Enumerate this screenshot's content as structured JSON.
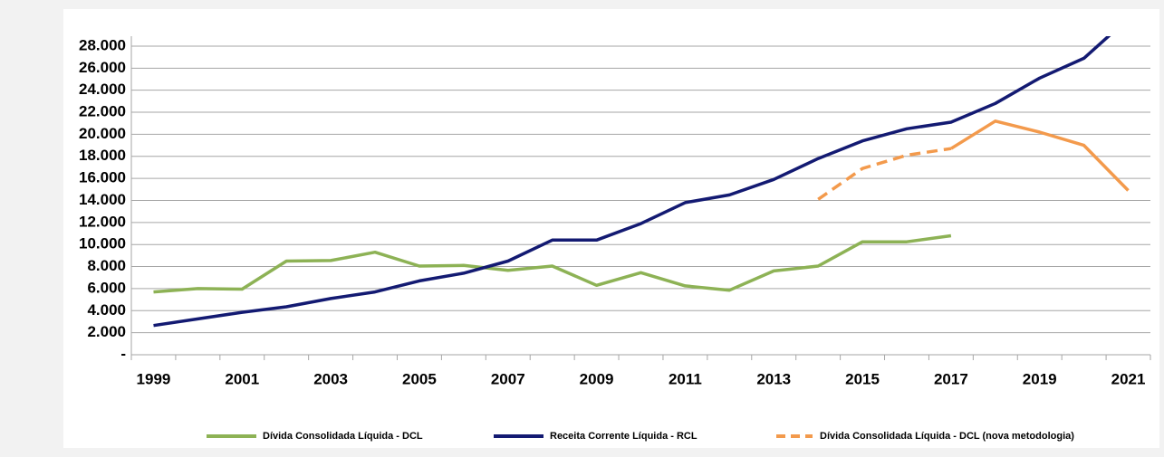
{
  "chart_data": {
    "type": "line",
    "categories": [
      "1999",
      null,
      "2001",
      null,
      "2003",
      null,
      "2005",
      null,
      "2007",
      null,
      "2009",
      null,
      "2011",
      null,
      "2013",
      null,
      "2015",
      null,
      "2017",
      null,
      "2019",
      null,
      "2021"
    ],
    "series": [
      {
        "name": "Dívida Consolidada Líquida - DCL",
        "color": "#8db255",
        "style": "solid",
        "values": [
          5700,
          6000,
          5950,
          8500,
          8550,
          9300,
          8050,
          8100,
          7650,
          8050,
          6300,
          7450,
          6250,
          5850,
          7600,
          8050,
          10250,
          10250,
          10800,
          null,
          null,
          null,
          null
        ]
      },
      {
        "name": "Receita Corrente Líquida - RCL",
        "color": "#131a72",
        "style": "solid",
        "values": [
          2650,
          3250,
          3850,
          4350,
          5100,
          5700,
          6700,
          7400,
          8500,
          10400,
          10400,
          11900,
          13800,
          14500,
          15900,
          17800,
          19400,
          20500,
          21100,
          22800,
          25100,
          26900,
          30500
        ]
      },
      {
        "name": "Dívida Consolidada Líquida - DCL (nova metodologia)",
        "color": "#f39a4c",
        "style": "dashed",
        "values": [
          null,
          null,
          null,
          null,
          null,
          null,
          null,
          null,
          null,
          null,
          null,
          null,
          null,
          null,
          null,
          14100,
          16900,
          18100,
          18700,
          null,
          null,
          null,
          null
        ]
      },
      {
        "color": "#f39a4c",
        "style": "solid",
        "values": [
          null,
          null,
          null,
          null,
          null,
          null,
          null,
          null,
          null,
          null,
          null,
          null,
          null,
          null,
          null,
          null,
          null,
          null,
          18700,
          21200,
          20200,
          19000,
          14900
        ]
      }
    ],
    "ylim": [
      0,
      28900
    ],
    "yticks": [
      {
        "value": 0,
        "label": "-"
      },
      {
        "value": 2000,
        "label": "2.000"
      },
      {
        "value": 4000,
        "label": "4.000"
      },
      {
        "value": 6000,
        "label": "6.000"
      },
      {
        "value": 8000,
        "label": "8.000"
      },
      {
        "value": 10000,
        "label": "10.000"
      },
      {
        "value": 12000,
        "label": "12.000"
      },
      {
        "value": 14000,
        "label": "14.000"
      },
      {
        "value": 16000,
        "label": "16.000"
      },
      {
        "value": 18000,
        "label": "18.000"
      },
      {
        "value": 20000,
        "label": "20.000"
      },
      {
        "value": 22000,
        "label": "22.000"
      },
      {
        "value": 24000,
        "label": "24.000"
      },
      {
        "value": 26000,
        "label": "26.000"
      },
      {
        "value": 28000,
        "label": "28.000"
      }
    ],
    "grid": true,
    "legend": "bottom"
  }
}
